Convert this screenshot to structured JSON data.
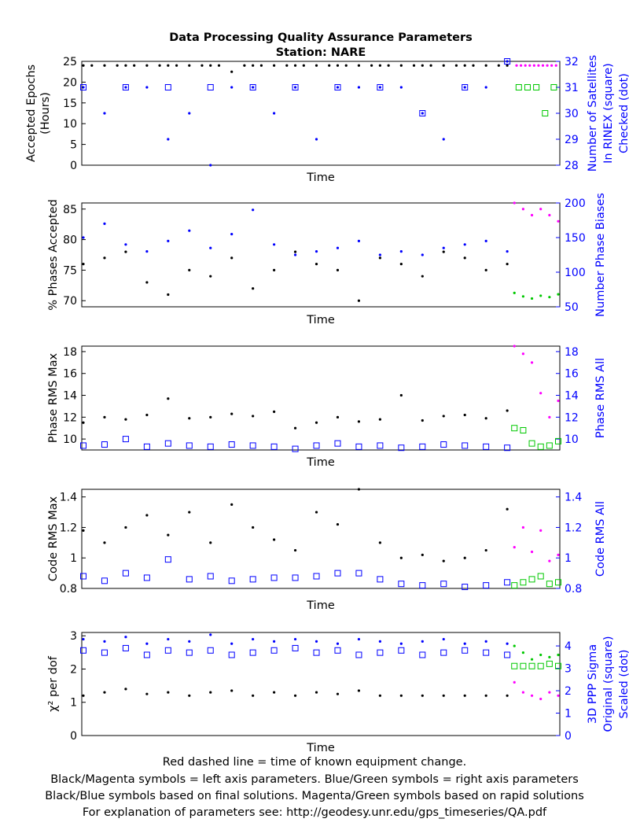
{
  "title": "Data Processing Quality Assurance Parameters",
  "subtitle": "Station: NARE",
  "footer": [
    "Red dashed line = time of known equipment change.",
    "Black/Magenta symbols = left axis parameters. Blue/Green symbols = right axis parameters",
    "Black/Blue symbols based on final solutions.  Magenta/Green symbols based on rapid solutions",
    "For explanation of parameters see: http://geodesy.unr.edu/gps_timeseries/QA.pdf"
  ],
  "colors": {
    "left_final": "#000000",
    "left_rapid": "#ff00ff",
    "right_final": "#0000ff",
    "right_rapid": "#00c800"
  },
  "chart_data": [
    {
      "type": "scatter",
      "xlabel": "Time",
      "ylabel_lines": [
        "Accepted Epochs",
        "(Hours)"
      ],
      "ylabel2_lines": [
        "Number of Satellites",
        "In RINEX (square)",
        "Checked (dot)"
      ],
      "ylim": [
        0,
        25
      ],
      "yticks": [
        0,
        5,
        10,
        15,
        20,
        25
      ],
      "y2lim": [
        28,
        32
      ],
      "y2ticks": [
        28,
        29,
        30,
        31,
        32
      ],
      "series": [
        {
          "axis": "left",
          "role": "final",
          "marker": "dot",
          "t": [
            0,
            0.02,
            0.05,
            0.08,
            0.1,
            0.12,
            0.15,
            0.18,
            0.2,
            0.22,
            0.25,
            0.28,
            0.3,
            0.32,
            0.35,
            0.38,
            0.4,
            0.42,
            0.45,
            0.48,
            0.5,
            0.52,
            0.55,
            0.58,
            0.6,
            0.62,
            0.65,
            0.68,
            0.7,
            0.72,
            0.75,
            0.78,
            0.8,
            0.82,
            0.85,
            0.88,
            0.9,
            0.92,
            0.95,
            0.98,
            1.0
          ],
          "y": [
            24,
            24,
            24,
            24,
            24,
            24,
            24,
            24,
            24,
            24,
            24,
            24,
            24,
            24,
            22.5,
            24,
            24,
            24,
            24,
            24,
            24,
            24,
            24,
            24,
            24,
            24,
            24,
            24,
            24,
            24,
            24,
            24,
            24,
            24,
            24,
            24,
            24,
            24,
            24,
            24,
            24
          ]
        },
        {
          "axis": "left",
          "role": "rapid",
          "marker": "dot",
          "t": [
            0.05,
            0.15,
            0.25,
            0.35,
            0.45,
            0.55,
            0.65,
            0.75,
            0.85,
            0.95
          ],
          "y": [
            24,
            24,
            24,
            24,
            24,
            24,
            24,
            24,
            24,
            24
          ]
        },
        {
          "axis": "right",
          "role": "final",
          "marker": "square",
          "t": [
            0,
            0.1,
            0.2,
            0.3,
            0.4,
            0.5,
            0.6,
            0.7,
            0.8,
            0.9,
            1.0
          ],
          "y": [
            31,
            31,
            31,
            31,
            31,
            31,
            31,
            31,
            30,
            31,
            32
          ]
        },
        {
          "axis": "right",
          "role": "final",
          "marker": "dot",
          "t": [
            0,
            0.05,
            0.1,
            0.15,
            0.2,
            0.25,
            0.3,
            0.35,
            0.4,
            0.45,
            0.5,
            0.55,
            0.6,
            0.65,
            0.7,
            0.75,
            0.8,
            0.85,
            0.9,
            0.95,
            1.0
          ],
          "y": [
            31,
            30,
            31,
            31,
            29,
            30,
            28,
            31,
            31,
            30,
            31,
            29,
            31,
            31,
            31,
            31,
            30,
            29,
            31,
            31,
            32
          ]
        },
        {
          "axis": "right",
          "role": "rapid",
          "marker": "square",
          "t": [
            0.1,
            0.3,
            0.5,
            0.7,
            0.9
          ],
          "y": [
            31,
            31,
            31,
            30,
            31
          ]
        }
      ]
    },
    {
      "type": "scatter",
      "xlabel": "Time",
      "ylabel_lines": [
        "% Phases Accepted"
      ],
      "ylabel2_lines": [
        "Number Phase Biases"
      ],
      "ylim": [
        69,
        86
      ],
      "yticks": [
        70,
        75,
        80,
        85
      ],
      "y2lim": [
        50,
        200
      ],
      "y2ticks": [
        50,
        100,
        150,
        200
      ],
      "series": [
        {
          "axis": "left",
          "role": "final",
          "marker": "dot",
          "t": [
            0,
            0.05,
            0.1,
            0.15,
            0.2,
            0.25,
            0.3,
            0.35,
            0.4,
            0.45,
            0.5,
            0.55,
            0.6,
            0.65,
            0.7,
            0.75,
            0.8,
            0.85,
            0.9,
            0.95,
            1.0
          ],
          "y": [
            76,
            77,
            78,
            73,
            71,
            75,
            74,
            77,
            72,
            75,
            78,
            76,
            75,
            70,
            77,
            76,
            74,
            78,
            77,
            75,
            76
          ]
        },
        {
          "axis": "left",
          "role": "rapid",
          "marker": "dot",
          "t": [
            0,
            0.2,
            0.4,
            0.6,
            0.8,
            1.0
          ],
          "y": [
            86,
            85,
            84,
            85,
            84,
            83
          ]
        },
        {
          "axis": "right",
          "role": "final",
          "marker": "dot",
          "t": [
            0,
            0.05,
            0.1,
            0.15,
            0.2,
            0.25,
            0.3,
            0.35,
            0.4,
            0.45,
            0.5,
            0.55,
            0.6,
            0.65,
            0.7,
            0.75,
            0.8,
            0.85,
            0.9,
            0.95,
            1.0
          ],
          "y": [
            150,
            170,
            140,
            130,
            145,
            160,
            135,
            155,
            190,
            140,
            125,
            130,
            135,
            145,
            125,
            130,
            125,
            135,
            140,
            145,
            130
          ]
        },
        {
          "axis": "right",
          "role": "rapid",
          "marker": "dot",
          "t": [
            0,
            0.2,
            0.4,
            0.6,
            0.8,
            1.0
          ],
          "y": [
            70,
            65,
            62,
            66,
            64,
            68
          ]
        }
      ]
    },
    {
      "type": "scatter",
      "xlabel": "Time",
      "ylabel_lines": [
        "Phase RMS Max"
      ],
      "ylabel2_lines": [
        "Phase RMS All"
      ],
      "ylim": [
        9,
        18.5
      ],
      "yticks": [
        10,
        12,
        14,
        16,
        18
      ],
      "y2lim": [
        9,
        18.5
      ],
      "y2ticks": [
        10,
        12,
        14,
        16,
        18
      ],
      "series": [
        {
          "axis": "left",
          "role": "final",
          "marker": "dot",
          "t": [
            0,
            0.05,
            0.1,
            0.15,
            0.2,
            0.25,
            0.3,
            0.35,
            0.4,
            0.45,
            0.5,
            0.55,
            0.6,
            0.65,
            0.7,
            0.75,
            0.8,
            0.85,
            0.9,
            0.95,
            1.0
          ],
          "y": [
            11.5,
            12,
            11.8,
            12.2,
            13.7,
            11.9,
            12,
            12.3,
            12.1,
            12.5,
            11,
            11.5,
            12,
            11.6,
            11.8,
            14,
            11.7,
            12.1,
            12.2,
            11.9,
            12.6
          ]
        },
        {
          "axis": "left",
          "role": "rapid",
          "marker": "dot",
          "t": [
            0,
            0.2,
            0.4,
            0.6,
            0.8,
            1.0
          ],
          "y": [
            18.5,
            17.8,
            17,
            14.2,
            12,
            13.5
          ]
        },
        {
          "axis": "right",
          "role": "final",
          "marker": "square",
          "t": [
            0,
            0.05,
            0.1,
            0.15,
            0.2,
            0.25,
            0.3,
            0.35,
            0.4,
            0.45,
            0.5,
            0.55,
            0.6,
            0.65,
            0.7,
            0.75,
            0.8,
            0.85,
            0.9,
            0.95,
            1.0
          ],
          "y": [
            9.4,
            9.5,
            10,
            9.3,
            9.6,
            9.4,
            9.3,
            9.5,
            9.4,
            9.3,
            9.1,
            9.4,
            9.6,
            9.3,
            9.4,
            9.2,
            9.3,
            9.5,
            9.4,
            9.3,
            9.2
          ]
        },
        {
          "axis": "right",
          "role": "rapid",
          "marker": "square",
          "t": [
            0,
            0.2,
            0.4,
            0.6,
            0.8,
            1.0
          ],
          "y": [
            11,
            10.8,
            9.6,
            9.3,
            9.4,
            9.8
          ]
        }
      ]
    },
    {
      "type": "scatter",
      "xlabel": "Time",
      "ylabel_lines": [
        "Code RMS Max"
      ],
      "ylabel2_lines": [
        "Code RMS All"
      ],
      "ylim": [
        0.8,
        1.45
      ],
      "yticks": [
        0.8,
        1.0,
        1.2,
        1.4
      ],
      "ytick_labels": [
        "0.8",
        "1",
        "1.2",
        "1.4"
      ],
      "y2lim": [
        0.8,
        1.45
      ],
      "y2ticks": [
        0.8,
        1.0,
        1.2,
        1.4
      ],
      "y2tick_labels": [
        "0.8",
        "1",
        "1.2",
        "1.4"
      ],
      "series": [
        {
          "axis": "left",
          "role": "final",
          "marker": "dot",
          "t": [
            0,
            0.05,
            0.1,
            0.15,
            0.2,
            0.25,
            0.3,
            0.35,
            0.4,
            0.45,
            0.5,
            0.55,
            0.6,
            0.65,
            0.7,
            0.75,
            0.8,
            0.85,
            0.9,
            0.95,
            1.0
          ],
          "y": [
            1.18,
            1.1,
            1.2,
            1.28,
            1.15,
            1.3,
            1.1,
            1.35,
            1.2,
            1.12,
            1.05,
            1.3,
            1.22,
            1.45,
            1.1,
            1.0,
            1.02,
            0.98,
            1.0,
            1.05,
            1.32
          ]
        },
        {
          "axis": "left",
          "role": "rapid",
          "marker": "dot",
          "t": [
            0,
            0.2,
            0.4,
            0.6,
            0.8,
            1.0
          ],
          "y": [
            1.07,
            1.2,
            1.04,
            1.18,
            0.98,
            1.02
          ]
        },
        {
          "axis": "right",
          "role": "final",
          "marker": "square",
          "t": [
            0,
            0.05,
            0.1,
            0.15,
            0.2,
            0.25,
            0.3,
            0.35,
            0.4,
            0.45,
            0.5,
            0.55,
            0.6,
            0.65,
            0.7,
            0.75,
            0.8,
            0.85,
            0.9,
            0.95,
            1.0
          ],
          "y": [
            0.88,
            0.85,
            0.9,
            0.87,
            0.99,
            0.86,
            0.88,
            0.85,
            0.86,
            0.87,
            0.87,
            0.88,
            0.9,
            0.9,
            0.86,
            0.83,
            0.82,
            0.83,
            0.81,
            0.82,
            0.84
          ]
        },
        {
          "axis": "right",
          "role": "rapid",
          "marker": "square",
          "t": [
            0,
            0.2,
            0.4,
            0.6,
            0.8,
            1.0
          ],
          "y": [
            0.82,
            0.84,
            0.86,
            0.88,
            0.83,
            0.84
          ]
        }
      ]
    },
    {
      "type": "scatter",
      "xlabel": "Time",
      "ylabel_lines": [
        "χ² per dof"
      ],
      "ylabel2_lines": [
        "3D PPP Sigma",
        "Original (square)",
        "Scaled (dot)"
      ],
      "ylim": [
        0,
        3.1
      ],
      "yticks": [
        0,
        1,
        2,
        3
      ],
      "y2lim": [
        0,
        4.6
      ],
      "y2ticks": [
        0,
        1,
        2,
        3,
        4
      ],
      "series": [
        {
          "axis": "left",
          "role": "final",
          "marker": "dot",
          "t": [
            0,
            0.05,
            0.1,
            0.15,
            0.2,
            0.25,
            0.3,
            0.35,
            0.4,
            0.45,
            0.5,
            0.55,
            0.6,
            0.65,
            0.7,
            0.75,
            0.8,
            0.85,
            0.9,
            0.95,
            1.0
          ],
          "y": [
            1.2,
            1.3,
            1.4,
            1.25,
            1.3,
            1.2,
            1.3,
            1.35,
            1.2,
            1.3,
            1.2,
            1.3,
            1.25,
            1.35,
            1.2,
            1.2,
            1.2,
            1.2,
            1.2,
            1.2,
            1.2
          ]
        },
        {
          "axis": "left",
          "role": "rapid",
          "marker": "dot",
          "t": [
            0,
            0.2,
            0.4,
            0.6,
            0.8,
            1.0
          ],
          "y": [
            1.6,
            1.3,
            1.2,
            1.1,
            1.3,
            1.2
          ]
        },
        {
          "axis": "right",
          "role": "final",
          "marker": "square",
          "t": [
            0,
            0.05,
            0.1,
            0.15,
            0.2,
            0.25,
            0.3,
            0.35,
            0.4,
            0.45,
            0.5,
            0.55,
            0.6,
            0.65,
            0.7,
            0.75,
            0.8,
            0.85,
            0.9,
            0.95,
            1.0
          ],
          "y": [
            3.8,
            3.7,
            3.9,
            3.6,
            3.8,
            3.7,
            3.8,
            3.6,
            3.7,
            3.8,
            3.9,
            3.7,
            3.8,
            3.6,
            3.7,
            3.8,
            3.6,
            3.7,
            3.8,
            3.7,
            3.6
          ]
        },
        {
          "axis": "right",
          "role": "final",
          "marker": "dot",
          "t": [
            0,
            0.05,
            0.1,
            0.15,
            0.2,
            0.25,
            0.3,
            0.35,
            0.4,
            0.45,
            0.5,
            0.55,
            0.6,
            0.65,
            0.7,
            0.75,
            0.8,
            0.85,
            0.9,
            0.95,
            1.0
          ],
          "y": [
            4.3,
            4.2,
            4.4,
            4.1,
            4.3,
            4.2,
            4.5,
            4.1,
            4.3,
            4.2,
            4.3,
            4.2,
            4.1,
            4.3,
            4.2,
            4.1,
            4.2,
            4.3,
            4.1,
            4.2,
            4.1
          ]
        },
        {
          "axis": "right",
          "role": "rapid",
          "marker": "square",
          "t": [
            0,
            0.2,
            0.4,
            0.6,
            0.8,
            1.0
          ],
          "y": [
            3.1,
            3.1,
            3.1,
            3.1,
            3.2,
            3.1
          ]
        },
        {
          "axis": "right",
          "role": "rapid",
          "marker": "dot",
          "t": [
            0,
            0.2,
            0.4,
            0.6,
            0.8,
            1.0
          ],
          "y": [
            4.0,
            3.7,
            3.4,
            3.6,
            3.5,
            3.6
          ]
        }
      ]
    }
  ]
}
